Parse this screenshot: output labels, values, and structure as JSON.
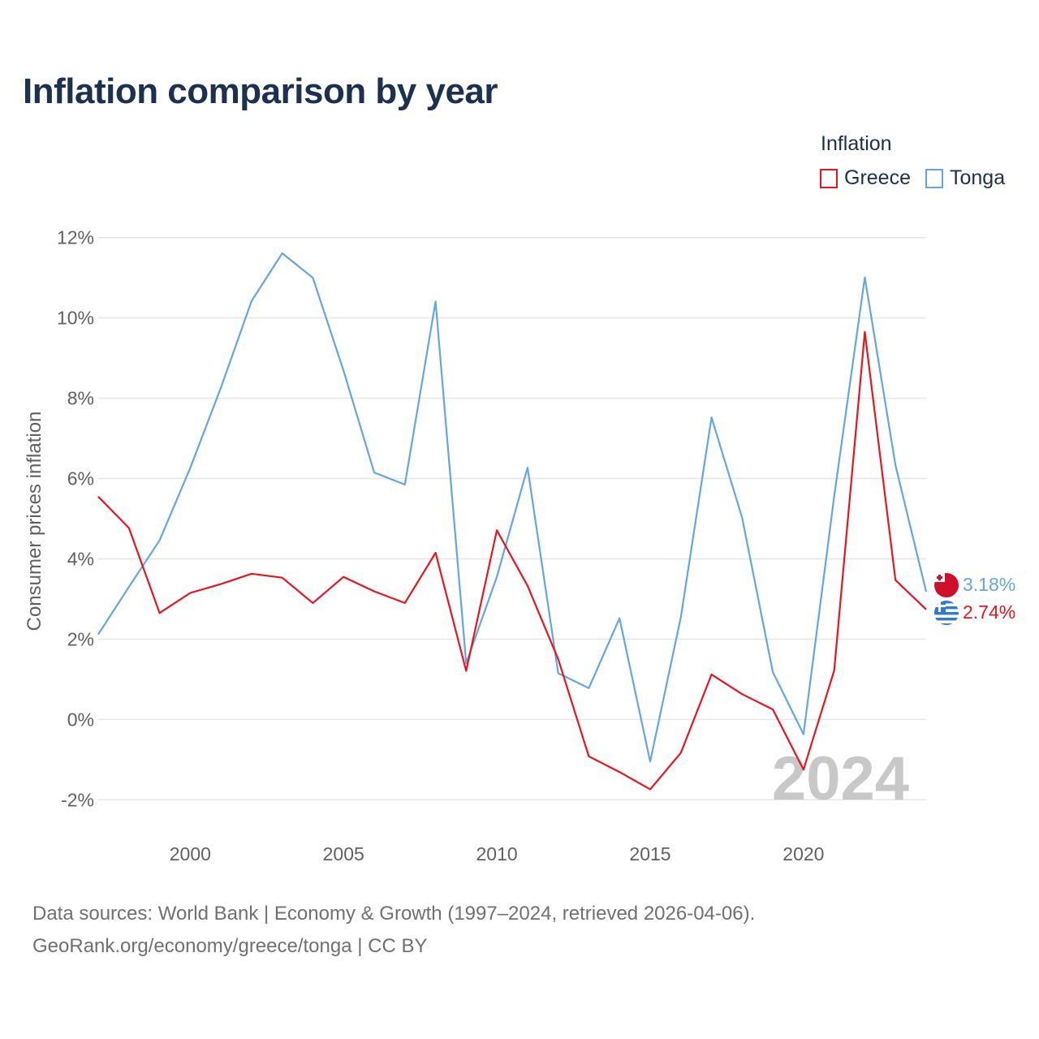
{
  "title": "Inflation comparison by year",
  "legend": {
    "title": "Inflation",
    "items": [
      {
        "name": "Greece",
        "color": "#e8141e"
      },
      {
        "name": "Tonga",
        "color": "#62a7e2"
      }
    ]
  },
  "chart_data": {
    "type": "line",
    "ylabel": "Consumer prices inflation",
    "xlabel": "",
    "year_watermark": "2024",
    "x": [
      1997,
      1998,
      1999,
      2000,
      2001,
      2002,
      2003,
      2004,
      2005,
      2006,
      2007,
      2008,
      2009,
      2010,
      2011,
      2012,
      2013,
      2014,
      2015,
      2016,
      2017,
      2018,
      2019,
      2020,
      2021,
      2022,
      2023,
      2024
    ],
    "xlim": [
      1997,
      2024
    ],
    "ylim": [
      -2.5,
      12.5
    ],
    "x_ticks": [
      2000,
      2005,
      2010,
      2015,
      2020
    ],
    "y_ticks": [
      -2,
      0,
      2,
      4,
      6,
      8,
      10,
      12
    ],
    "y_tick_labels": [
      "-2%",
      "0%",
      "2%",
      "4%",
      "6%",
      "8%",
      "10%",
      "12%"
    ],
    "series": [
      {
        "name": "Greece",
        "color": "#e8141e",
        "values": [
          5.55,
          4.77,
          2.65,
          3.15,
          3.37,
          3.63,
          3.53,
          2.9,
          3.55,
          3.19,
          2.9,
          4.15,
          1.21,
          4.71,
          3.33,
          1.5,
          -0.92,
          -1.31,
          -1.74,
          -0.83,
          1.12,
          0.63,
          0.25,
          -1.25,
          1.22,
          9.65,
          3.47,
          2.74
        ],
        "end_label": "2.74%"
      },
      {
        "name": "Tonga",
        "color": "#62a7e2",
        "values": [
          2.12,
          3.3,
          4.46,
          6.26,
          8.26,
          10.42,
          11.61,
          11.0,
          8.69,
          6.15,
          5.85,
          10.41,
          1.4,
          3.55,
          6.27,
          1.15,
          0.78,
          2.52,
          -1.05,
          2.55,
          7.52,
          5.02,
          1.18,
          -0.37,
          5.56,
          11.01,
          6.33,
          3.18
        ],
        "end_label": "3.18%"
      }
    ]
  },
  "source": {
    "line1": "Data sources: World Bank | Economy & Growth (1997–2024, retrieved 2026-04-06).",
    "line2": "GeoRank.org/economy/greece/tonga | CC BY"
  }
}
